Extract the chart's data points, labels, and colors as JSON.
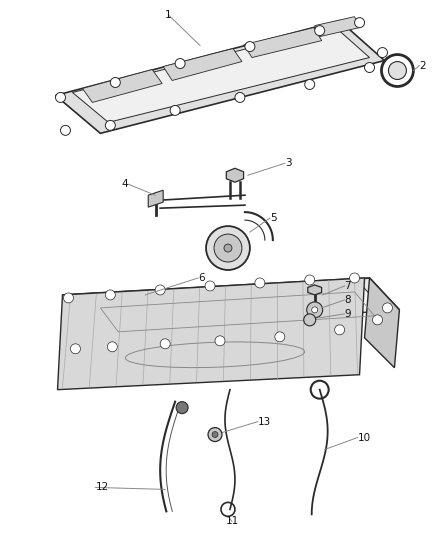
{
  "bg_color": "#ffffff",
  "fig_width": 4.38,
  "fig_height": 5.33,
  "dpi": 100,
  "lc": "#2a2a2a",
  "gc": "#888888",
  "fill_light": "#e0e0e0",
  "fill_mid": "#c8c8c8",
  "fill_dark": "#b0b0b0"
}
